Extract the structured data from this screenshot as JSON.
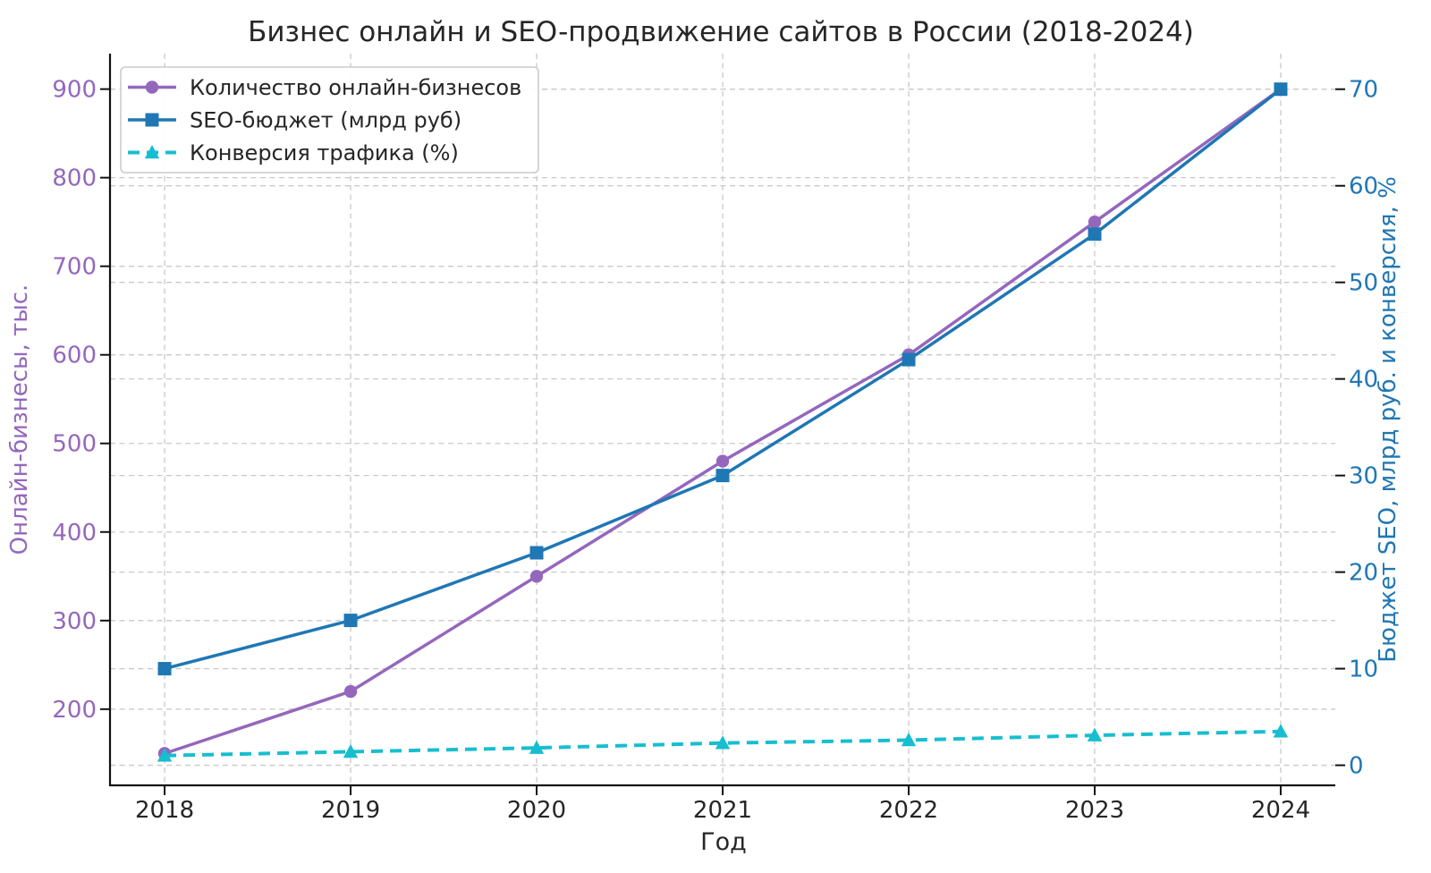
{
  "chart_data": {
    "type": "line",
    "title": "Бизнес онлайн и SEO-продвижение сайтов в России (2018-2024)",
    "xlabel": "Год",
    "ylabel_left": "Онлайн-бизнесы, тыс.",
    "ylabel_right": "Бюджет SEO, млрд руб. и конверсия, %",
    "x": [
      2018,
      2019,
      2020,
      2021,
      2022,
      2023,
      2024
    ],
    "series": [
      {
        "name": "Количество онлайн-бизнесов",
        "axis": "left",
        "values": [
          150,
          220,
          350,
          480,
          600,
          750,
          900
        ],
        "color": "#9467bd",
        "marker": "circle",
        "line_style": "solid"
      },
      {
        "name": "SEO-бюджет (млрд руб)",
        "axis": "right",
        "values": [
          10,
          15,
          22,
          30,
          42,
          55,
          70
        ],
        "color": "#1f77b4",
        "marker": "square",
        "line_style": "solid"
      },
      {
        "name": "Конверсия трафика (%)",
        "axis": "right",
        "values": [
          1.0,
          1.4,
          1.8,
          2.3,
          2.6,
          3.1,
          3.5
        ],
        "color": "#17becf",
        "marker": "triangle",
        "line_style": "dashed"
      }
    ],
    "axes": {
      "x_ticks": [
        "2018",
        "2019",
        "2020",
        "2021",
        "2022",
        "2023",
        "2024"
      ],
      "left_ticks": [
        200,
        300,
        400,
        500,
        600,
        700,
        800,
        900
      ],
      "right_ticks": [
        0,
        10,
        20,
        30,
        40,
        50,
        60,
        70
      ],
      "xlim": [
        2017.7065,
        2024.2935
      ],
      "left_ylim": [
        114,
        940
      ],
      "right_ylim": [
        -2.08,
        73.68
      ]
    },
    "grid": true,
    "legend_position": "upper-left",
    "colors": {
      "left_axis_text": "#9467bd",
      "right_axis_text": "#1f77b4",
      "text": "#262626",
      "grid": "#c9c9c9",
      "spine": "#111111",
      "legend_border": "#cccccc",
      "legend_bg": "#ffffff"
    }
  }
}
